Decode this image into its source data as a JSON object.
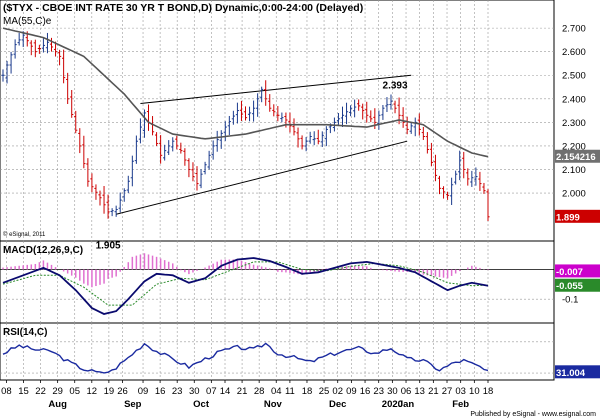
{
  "header": {
    "title": "($TYX - CBOE INT RATE 30 YR T BOND,D) Dynamic,0:00-24:00 (Delayed)",
    "ma_label": "MA(55,C)e",
    "copyright": "© eSignal, 2011"
  },
  "footer": {
    "published": "Published by eSignal - www.esignal.com"
  },
  "colors": {
    "price_up": "#1a3a8c",
    "price_down": "#cc0000",
    "ma": "#555555",
    "macd_line": "#0a0a6e",
    "macd_signal": "#2a8a2a",
    "macd_hist": "#e070d0",
    "rsi_line": "#1a2aa0",
    "grid": "#9a9a9a",
    "last_price_bg": "#cc0000",
    "ma_box_bg": "#707070",
    "macd_box_bg": "#cc00cc",
    "signal_box_bg": "#2a8a2a",
    "rsi_box_bg": "#1a2aa0"
  },
  "chart_data": {
    "type": "line",
    "price": {
      "yticks": [
        2.0,
        2.1,
        2.2,
        2.3,
        2.4,
        2.5,
        2.6,
        2.7
      ],
      "ylim": [
        1.86,
        2.76
      ],
      "annotations": [
        {
          "text": "2.393",
          "x_index": 97,
          "y": 2.393
        },
        {
          "text": "1.905",
          "x_index": 26,
          "y": 1.905
        }
      ],
      "last_price_label": "1.899",
      "ma_value_label": "2.154216",
      "trendlines": [
        {
          "from": [
            28,
            1.91
          ],
          "to": [
            100,
            2.22
          ]
        },
        {
          "from": [
            34,
            2.38
          ],
          "to": [
            101,
            2.5
          ]
        }
      ],
      "close_anchors": [
        [
          0,
          2.5
        ],
        [
          3,
          2.63
        ],
        [
          5,
          2.67
        ],
        [
          8,
          2.6
        ],
        [
          11,
          2.64
        ],
        [
          14,
          2.58
        ],
        [
          16,
          2.4
        ],
        [
          19,
          2.2
        ],
        [
          21,
          2.05
        ],
        [
          24,
          1.98
        ],
        [
          26,
          1.92
        ],
        [
          28,
          1.93
        ],
        [
          31,
          2.05
        ],
        [
          33,
          2.22
        ],
        [
          35,
          2.34
        ],
        [
          37,
          2.26
        ],
        [
          39,
          2.16
        ],
        [
          42,
          2.22
        ],
        [
          44,
          2.18
        ],
        [
          46,
          2.1
        ],
        [
          48,
          2.04
        ],
        [
          50,
          2.12
        ],
        [
          52,
          2.2
        ],
        [
          55,
          2.28
        ],
        [
          58,
          2.35
        ],
        [
          60,
          2.32
        ],
        [
          62,
          2.36
        ],
        [
          64,
          2.44
        ],
        [
          66,
          2.36
        ],
        [
          68,
          2.33
        ],
        [
          70,
          2.31
        ],
        [
          72,
          2.26
        ],
        [
          74,
          2.2
        ],
        [
          76,
          2.24
        ],
        [
          78,
          2.22
        ],
        [
          80,
          2.27
        ],
        [
          82,
          2.3
        ],
        [
          84,
          2.33
        ],
        [
          86,
          2.36
        ],
        [
          88,
          2.37
        ],
        [
          90,
          2.33
        ],
        [
          92,
          2.3
        ],
        [
          94,
          2.36
        ],
        [
          96,
          2.39
        ],
        [
          98,
          2.33
        ],
        [
          100,
          2.27
        ],
        [
          102,
          2.3
        ],
        [
          104,
          2.24
        ],
        [
          106,
          2.13
        ],
        [
          108,
          2.02
        ],
        [
          110,
          1.99
        ],
        [
          112,
          2.08
        ],
        [
          113,
          2.14
        ],
        [
          115,
          2.06
        ],
        [
          117,
          2.07
        ],
        [
          119,
          2.01
        ],
        [
          120,
          1.899
        ]
      ],
      "ma_anchors": [
        [
          0,
          2.7
        ],
        [
          10,
          2.66
        ],
        [
          20,
          2.58
        ],
        [
          30,
          2.42
        ],
        [
          36,
          2.3
        ],
        [
          42,
          2.25
        ],
        [
          50,
          2.23
        ],
        [
          60,
          2.25
        ],
        [
          70,
          2.29
        ],
        [
          80,
          2.29
        ],
        [
          90,
          2.28
        ],
        [
          98,
          2.31
        ],
        [
          104,
          2.29
        ],
        [
          110,
          2.22
        ],
        [
          116,
          2.17
        ],
        [
          120,
          2.154
        ]
      ]
    },
    "macd": {
      "label": "MACD(12,26,9,C)",
      "yticks": [
        -0.1
      ],
      "ylim": [
        -0.17,
        0.075
      ],
      "macd_value_label": "-0.007",
      "signal_value_label": "-0.055",
      "line_anchors": [
        [
          0,
          -0.045
        ],
        [
          6,
          -0.015
        ],
        [
          10,
          0.005
        ],
        [
          14,
          -0.02
        ],
        [
          18,
          -0.07
        ],
        [
          22,
          -0.13
        ],
        [
          25,
          -0.15
        ],
        [
          28,
          -0.14
        ],
        [
          31,
          -0.1
        ],
        [
          35,
          -0.04
        ],
        [
          38,
          -0.015
        ],
        [
          42,
          -0.02
        ],
        [
          46,
          -0.045
        ],
        [
          50,
          -0.03
        ],
        [
          54,
          0.012
        ],
        [
          58,
          0.033
        ],
        [
          62,
          0.038
        ],
        [
          66,
          0.028
        ],
        [
          70,
          0.008
        ],
        [
          74,
          -0.015
        ],
        [
          78,
          -0.01
        ],
        [
          82,
          0.005
        ],
        [
          86,
          0.02
        ],
        [
          90,
          0.025
        ],
        [
          94,
          0.015
        ],
        [
          98,
          0.005
        ],
        [
          102,
          -0.01
        ],
        [
          106,
          -0.04
        ],
        [
          110,
          -0.07
        ],
        [
          113,
          -0.055
        ],
        [
          116,
          -0.045
        ],
        [
          120,
          -0.055
        ]
      ],
      "signal_anchors": [
        [
          0,
          -0.05
        ],
        [
          8,
          -0.02
        ],
        [
          14,
          -0.02
        ],
        [
          20,
          -0.06
        ],
        [
          26,
          -0.12
        ],
        [
          32,
          -0.12
        ],
        [
          38,
          -0.05
        ],
        [
          44,
          -0.03
        ],
        [
          50,
          -0.035
        ],
        [
          56,
          -0.005
        ],
        [
          62,
          0.025
        ],
        [
          68,
          0.025
        ],
        [
          74,
          0.0
        ],
        [
          80,
          -0.005
        ],
        [
          86,
          0.01
        ],
        [
          92,
          0.02
        ],
        [
          98,
          0.012
        ],
        [
          104,
          -0.01
        ],
        [
          110,
          -0.045
        ],
        [
          116,
          -0.055
        ],
        [
          120,
          -0.053
        ]
      ]
    },
    "rsi": {
      "label": "RSI(14,C)",
      "yticks": [],
      "ylim": [
        0,
        100
      ],
      "rsi_value_label": "31.004",
      "anchors": [
        [
          0,
          55
        ],
        [
          4,
          65
        ],
        [
          8,
          60
        ],
        [
          12,
          58
        ],
        [
          16,
          45
        ],
        [
          20,
          35
        ],
        [
          24,
          30
        ],
        [
          27,
          33
        ],
        [
          31,
          50
        ],
        [
          35,
          68
        ],
        [
          38,
          58
        ],
        [
          42,
          48
        ],
        [
          46,
          38
        ],
        [
          50,
          48
        ],
        [
          54,
          58
        ],
        [
          58,
          63
        ],
        [
          62,
          60
        ],
        [
          65,
          68
        ],
        [
          68,
          55
        ],
        [
          72,
          50
        ],
        [
          76,
          44
        ],
        [
          80,
          52
        ],
        [
          84,
          58
        ],
        [
          88,
          62
        ],
        [
          92,
          55
        ],
        [
          96,
          62
        ],
        [
          100,
          48
        ],
        [
          104,
          46
        ],
        [
          108,
          34
        ],
        [
          112,
          44
        ],
        [
          114,
          46
        ],
        [
          118,
          38
        ],
        [
          120,
          31
        ]
      ]
    },
    "x_axis": {
      "count": 121,
      "ticks": [
        {
          "label": "08",
          "i": 1
        },
        {
          "label": "15",
          "i": 6
        },
        {
          "label": "22",
          "i": 11
        },
        {
          "label": "29",
          "i": 16
        },
        {
          "label": "05",
          "i": 21
        },
        {
          "label": "12",
          "i": 26
        },
        {
          "label": "19",
          "i": 31
        },
        {
          "label": "26",
          "i": 35
        },
        {
          "label": "09",
          "i": 41
        },
        {
          "label": "16",
          "i": 46
        },
        {
          "label": "23",
          "i": 51
        },
        {
          "label": "30",
          "i": 56
        },
        {
          "label": "07",
          "i": 61
        },
        {
          "label": "14",
          "i": 65
        },
        {
          "label": "21",
          "i": 70
        },
        {
          "label": "28",
          "i": 75
        },
        {
          "label": "04",
          "i": 80
        },
        {
          "label": "11",
          "i": 84
        },
        {
          "label": "18",
          "i": 89
        },
        {
          "label": "25",
          "i": 94
        },
        {
          "label": "02",
          "i": 98
        },
        {
          "label": "09",
          "i": 102
        },
        {
          "label": "16",
          "i": 106
        },
        {
          "label": "23",
          "i": 110
        },
        {
          "label": "30",
          "i": 114
        },
        {
          "label": "06",
          "i": 118
        },
        {
          "label": "13",
          "i": 122
        },
        {
          "label": "21",
          "i": 126
        },
        {
          "label": "27",
          "i": 130
        },
        {
          "label": "03",
          "i": 134
        },
        {
          "label": "10",
          "i": 138
        },
        {
          "label": "18",
          "i": 142
        }
      ],
      "months": [
        {
          "label": "Aug",
          "i": 16
        },
        {
          "label": "Sep",
          "i": 38
        },
        {
          "label": "Oct",
          "i": 58
        },
        {
          "label": "Nov",
          "i": 79
        },
        {
          "label": "Dec",
          "i": 98
        },
        {
          "label": "2020",
          "i": 114
        },
        {
          "label": "Jan",
          "i": 118
        },
        {
          "label": "Feb",
          "i": 134
        }
      ]
    }
  }
}
